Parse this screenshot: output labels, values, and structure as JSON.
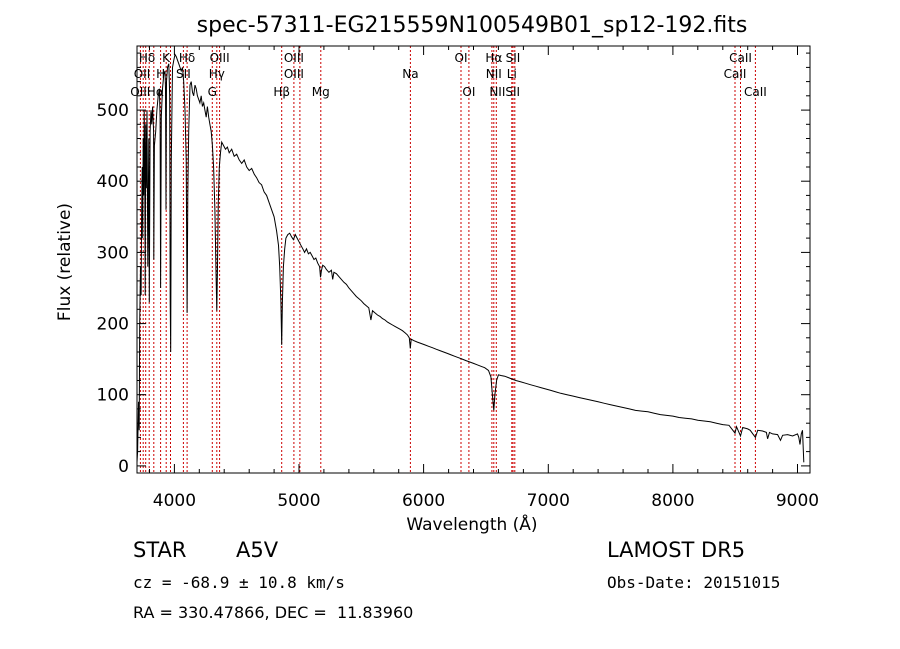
{
  "chart_data": {
    "type": "line",
    "title": "spec-57311-EG215559N100549B01_sp12-192.fits",
    "xlabel": "Wavelength (Å)",
    "ylabel": "Flux (relative)",
    "xlim": [
      3700,
      9100
    ],
    "ylim": [
      -10,
      590
    ],
    "xticks": [
      4000,
      5000,
      6000,
      7000,
      8000,
      9000
    ],
    "yticks": [
      0,
      100,
      200,
      300,
      400,
      500
    ],
    "grid": false,
    "series": [
      {
        "color": "#000000",
        "points": [
          [
            3700,
            5
          ],
          [
            3705,
            20
          ],
          [
            3712,
            90
          ],
          [
            3718,
            50
          ],
          [
            3722,
            200
          ],
          [
            3728,
            280
          ],
          [
            3733,
            240
          ],
          [
            3737,
            350
          ],
          [
            3742,
            420
          ],
          [
            3746,
            320
          ],
          [
            3750,
            460
          ],
          [
            3754,
            380
          ],
          [
            3758,
            500
          ],
          [
            3762,
            440
          ],
          [
            3766,
            240
          ],
          [
            3770,
            480
          ],
          [
            3775,
            390
          ],
          [
            3780,
            500
          ],
          [
            3787,
            280
          ],
          [
            3795,
            460
          ],
          [
            3799,
            230
          ],
          [
            3805,
            470
          ],
          [
            3812,
            500
          ],
          [
            3818,
            480
          ],
          [
            3825,
            505
          ],
          [
            3833,
            470
          ],
          [
            3835,
            290
          ],
          [
            3840,
            450
          ],
          [
            3850,
            470
          ],
          [
            3860,
            500
          ],
          [
            3870,
            520
          ],
          [
            3880,
            530
          ],
          [
            3885,
            490
          ],
          [
            3889,
            250
          ],
          [
            3895,
            490
          ],
          [
            3905,
            530
          ],
          [
            3915,
            550
          ],
          [
            3925,
            555
          ],
          [
            3929,
            530
          ],
          [
            3933,
            360
          ],
          [
            3937,
            540
          ],
          [
            3945,
            560
          ],
          [
            3955,
            565
          ],
          [
            3962,
            520
          ],
          [
            3966,
            230
          ],
          [
            3970,
            160
          ],
          [
            3975,
            430
          ],
          [
            3985,
            560
          ],
          [
            3995,
            570
          ],
          [
            4005,
            578
          ],
          [
            4015,
            575
          ],
          [
            4025,
            570
          ],
          [
            4035,
            565
          ],
          [
            4045,
            560
          ],
          [
            4055,
            555
          ],
          [
            4065,
            560
          ],
          [
            4075,
            540
          ],
          [
            4085,
            500
          ],
          [
            4095,
            430
          ],
          [
            4102,
            215
          ],
          [
            4108,
            380
          ],
          [
            4115,
            470
          ],
          [
            4125,
            535
          ],
          [
            4135,
            540
          ],
          [
            4145,
            525
          ],
          [
            4155,
            520
          ],
          [
            4165,
            535
          ],
          [
            4175,
            530
          ],
          [
            4185,
            520
          ],
          [
            4195,
            515
          ],
          [
            4205,
            510
          ],
          [
            4215,
            520
          ],
          [
            4225,
            505
          ],
          [
            4235,
            510
          ],
          [
            4245,
            500
          ],
          [
            4255,
            490
          ],
          [
            4265,
            505
          ],
          [
            4275,
            490
          ],
          [
            4285,
            480
          ],
          [
            4295,
            470
          ],
          [
            4305,
            450
          ],
          [
            4315,
            420
          ],
          [
            4325,
            360
          ],
          [
            4333,
            280
          ],
          [
            4340,
            218
          ],
          [
            4346,
            280
          ],
          [
            4352,
            370
          ],
          [
            4360,
            420
          ],
          [
            4370,
            440
          ],
          [
            4380,
            455
          ],
          [
            4395,
            450
          ],
          [
            4410,
            445
          ],
          [
            4425,
            448
          ],
          [
            4440,
            440
          ],
          [
            4460,
            445
          ],
          [
            4480,
            435
          ],
          [
            4500,
            438
          ],
          [
            4520,
            430
          ],
          [
            4540,
            425
          ],
          [
            4560,
            430
          ],
          [
            4580,
            420
          ],
          [
            4600,
            415
          ],
          [
            4620,
            418
          ],
          [
            4640,
            410
          ],
          [
            4660,
            405
          ],
          [
            4680,
            398
          ],
          [
            4700,
            395
          ],
          [
            4720,
            385
          ],
          [
            4740,
            380
          ],
          [
            4760,
            370
          ],
          [
            4780,
            360
          ],
          [
            4800,
            350
          ],
          [
            4820,
            330
          ],
          [
            4835,
            310
          ],
          [
            4845,
            280
          ],
          [
            4855,
            230
          ],
          [
            4861,
            170
          ],
          [
            4867,
            230
          ],
          [
            4875,
            280
          ],
          [
            4885,
            305
          ],
          [
            4895,
            320
          ],
          [
            4910,
            325
          ],
          [
            4925,
            327
          ],
          [
            4940,
            322
          ],
          [
            4955,
            318
          ],
          [
            4970,
            325
          ],
          [
            4985,
            320
          ],
          [
            5000,
            315
          ],
          [
            5015,
            310
          ],
          [
            5030,
            305
          ],
          [
            5045,
            300
          ],
          [
            5060,
            305
          ],
          [
            5075,
            298
          ],
          [
            5090,
            300
          ],
          [
            5105,
            295
          ],
          [
            5120,
            290
          ],
          [
            5135,
            292
          ],
          [
            5150,
            285
          ],
          [
            5165,
            280
          ],
          [
            5172,
            265
          ],
          [
            5180,
            275
          ],
          [
            5190,
            282
          ],
          [
            5205,
            280
          ],
          [
            5220,
            276
          ],
          [
            5240,
            272
          ],
          [
            5260,
            275
          ],
          [
            5270,
            262
          ],
          [
            5280,
            272
          ],
          [
            5300,
            270
          ],
          [
            5320,
            266
          ],
          [
            5340,
            262
          ],
          [
            5360,
            258
          ],
          [
            5380,
            255
          ],
          [
            5400,
            250
          ],
          [
            5420,
            246
          ],
          [
            5440,
            242
          ],
          [
            5460,
            238
          ],
          [
            5480,
            235
          ],
          [
            5500,
            232
          ],
          [
            5520,
            228
          ],
          [
            5540,
            225
          ],
          [
            5560,
            222
          ],
          [
            5577,
            205
          ],
          [
            5590,
            218
          ],
          [
            5610,
            215
          ],
          [
            5630,
            212
          ],
          [
            5650,
            210
          ],
          [
            5670,
            207
          ],
          [
            5690,
            205
          ],
          [
            5710,
            202
          ],
          [
            5730,
            200
          ],
          [
            5750,
            198
          ],
          [
            5770,
            196
          ],
          [
            5790,
            194
          ],
          [
            5810,
            192
          ],
          [
            5830,
            190
          ],
          [
            5850,
            187
          ],
          [
            5870,
            184
          ],
          [
            5885,
            180
          ],
          [
            5893,
            165
          ],
          [
            5900,
            178
          ],
          [
            5920,
            176
          ],
          [
            5950,
            174
          ],
          [
            5980,
            172
          ],
          [
            6010,
            170
          ],
          [
            6040,
            168
          ],
          [
            6070,
            166
          ],
          [
            6100,
            164
          ],
          [
            6130,
            162
          ],
          [
            6160,
            160
          ],
          [
            6190,
            158
          ],
          [
            6220,
            156
          ],
          [
            6250,
            154
          ],
          [
            6280,
            152
          ],
          [
            6310,
            150
          ],
          [
            6340,
            148
          ],
          [
            6370,
            146
          ],
          [
            6400,
            144
          ],
          [
            6430,
            142
          ],
          [
            6460,
            140
          ],
          [
            6490,
            138
          ],
          [
            6520,
            134
          ],
          [
            6540,
            125
          ],
          [
            6552,
            100
          ],
          [
            6563,
            78
          ],
          [
            6572,
            100
          ],
          [
            6585,
            120
          ],
          [
            6600,
            128
          ],
          [
            6620,
            127
          ],
          [
            6650,
            126
          ],
          [
            6680,
            124
          ],
          [
            6710,
            122
          ],
          [
            6740,
            120
          ],
          [
            6780,
            118
          ],
          [
            6820,
            116
          ],
          [
            6860,
            114
          ],
          [
            6900,
            112
          ],
          [
            6940,
            110
          ],
          [
            6980,
            108
          ],
          [
            7020,
            106
          ],
          [
            7060,
            104
          ],
          [
            7100,
            102
          ],
          [
            7150,
            100
          ],
          [
            7200,
            98
          ],
          [
            7250,
            96
          ],
          [
            7300,
            94
          ],
          [
            7350,
            92
          ],
          [
            7400,
            90
          ],
          [
            7450,
            88
          ],
          [
            7500,
            86
          ],
          [
            7550,
            84
          ],
          [
            7600,
            82
          ],
          [
            7650,
            80
          ],
          [
            7700,
            78
          ],
          [
            7750,
            77
          ],
          [
            7800,
            76
          ],
          [
            7850,
            74
          ],
          [
            7900,
            72
          ],
          [
            7950,
            71
          ],
          [
            8000,
            70
          ],
          [
            8050,
            68
          ],
          [
            8100,
            67
          ],
          [
            8150,
            66
          ],
          [
            8200,
            64
          ],
          [
            8250,
            63
          ],
          [
            8300,
            62
          ],
          [
            8350,
            60
          ],
          [
            8400,
            58
          ],
          [
            8450,
            57
          ],
          [
            8498,
            46
          ],
          [
            8510,
            55
          ],
          [
            8542,
            42
          ],
          [
            8560,
            54
          ],
          [
            8600,
            52
          ],
          [
            8620,
            50
          ],
          [
            8662,
            40
          ],
          [
            8680,
            50
          ],
          [
            8720,
            49
          ],
          [
            8750,
            47
          ],
          [
            8760,
            38
          ],
          [
            8775,
            47
          ],
          [
            8800,
            45
          ],
          [
            8840,
            44
          ],
          [
            8863,
            36
          ],
          [
            8880,
            43
          ],
          [
            8920,
            44
          ],
          [
            8960,
            42
          ],
          [
            9000,
            45
          ],
          [
            9010,
            40
          ],
          [
            9020,
            30
          ],
          [
            9030,
            45
          ],
          [
            9040,
            50
          ],
          [
            9050,
            5
          ]
        ]
      }
    ],
    "lines": {
      "color": "#cc0000",
      "wavelengths": [
        3727,
        3750,
        3770,
        3798,
        3835,
        3889,
        3934,
        3969,
        4072,
        4102,
        4304,
        4340,
        4363,
        4861,
        4959,
        5007,
        5175,
        5894,
        6300,
        6363,
        6548,
        6563,
        6583,
        6707,
        6717,
        6731,
        8498,
        8542,
        8662
      ]
    },
    "line_labels": [
      {
        "text": "Hδ",
        "x": 3780,
        "row": 1
      },
      {
        "text": "K",
        "x": 3933,
        "row": 1
      },
      {
        "text": "Hδ",
        "x": 4102,
        "row": 1
      },
      {
        "text": "OIII",
        "x": 4363,
        "row": 1
      },
      {
        "text": "OIII",
        "x": 4959,
        "row": 1
      },
      {
        "text": "OI",
        "x": 6300,
        "row": 1
      },
      {
        "text": "Hα",
        "x": 6563,
        "row": 1
      },
      {
        "text": "SII",
        "x": 6717,
        "row": 1
      },
      {
        "text": "CaII",
        "x": 8542,
        "row": 1
      },
      {
        "text": "OII",
        "x": 3740,
        "row": 2
      },
      {
        "text": "H",
        "x": 3890,
        "row": 2
      },
      {
        "text": "SII",
        "x": 4072,
        "row": 2
      },
      {
        "text": "Hγ",
        "x": 4340,
        "row": 2
      },
      {
        "text": "OIII",
        "x": 4959,
        "row": 2
      },
      {
        "text": "Na",
        "x": 5894,
        "row": 2
      },
      {
        "text": "NII",
        "x": 6563,
        "row": 2
      },
      {
        "text": "Li",
        "x": 6707,
        "row": 2
      },
      {
        "text": "CaII",
        "x": 8498,
        "row": 2
      },
      {
        "text": "OIIHα",
        "x": 3780,
        "row": 3
      },
      {
        "text": "G",
        "x": 4304,
        "row": 3
      },
      {
        "text": "Hβ",
        "x": 4861,
        "row": 3
      },
      {
        "text": "Mg",
        "x": 5175,
        "row": 3
      },
      {
        "text": "OI",
        "x": 6363,
        "row": 3
      },
      {
        "text": "NIISII",
        "x": 6650,
        "row": 3
      },
      {
        "text": "CaII",
        "x": 8662,
        "row": 3
      }
    ]
  },
  "footer": {
    "object_class": "STAR",
    "subclass": "A5V",
    "survey": "LAMOST DR5",
    "cz": "cz = -68.9 ± 10.8 km/s",
    "obs_date": "Obs-Date: 20151015",
    "coords": "RA = 330.47866, DEC =  11.83960"
  }
}
